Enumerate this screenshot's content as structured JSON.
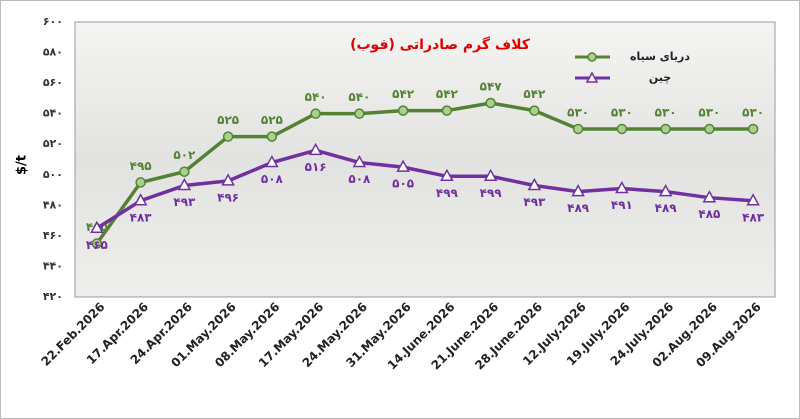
{
  "chart_data": {
    "type": "line",
    "title": "کلاف گرم صادراتی (فوب)",
    "y_label": "$/t",
    "categories": [
      "22.Feb.2026",
      "17.Apr.2026",
      "24.Apr.2026",
      "01.May.2026",
      "08.May.2026",
      "17.May.2026",
      "24.May.2026",
      "31.May.2026",
      "14.June.2026",
      "21.June.2026",
      "28.June.2026",
      "12.July.2026",
      "19.July.2026",
      "24.July.2026",
      "02.Aug.2026",
      "09.Aug.2026"
    ],
    "series": [
      {
        "name": "دریای سیاه",
        "color": "#548235",
        "marker": "circle",
        "values": [
          455,
          495,
          502,
          525,
          525,
          540,
          540,
          542,
          542,
          547,
          542,
          530,
          530,
          530,
          530,
          530
        ],
        "value_labels": [
          "۴۵۵",
          "۴۹۵",
          "۵۰۲",
          "۵۲۵",
          "۵۲۵",
          "۵۴۰",
          "۵۴۰",
          "۵۴۲",
          "۵۴۲",
          "۵۴۷",
          "۵۴۲",
          "۵۳۰",
          "۵۳۰",
          "۵۳۰",
          "۵۳۰",
          "۵۳۰"
        ]
      },
      {
        "name": "چین",
        "color": "#7030a0",
        "marker": "triangle",
        "values": [
          465,
          483,
          493,
          496,
          508,
          516,
          508,
          505,
          499,
          499,
          493,
          489,
          491,
          489,
          485,
          483
        ],
        "value_labels": [
          "۴۶۵",
          "۴۸۳",
          "۴۹۳",
          "۴۹۶",
          "۵۰۸",
          "۵۱۶",
          "۵۰۸",
          "۵۰۵",
          "۴۹۹",
          "۴۹۹",
          "۴۹۳",
          "۴۸۹",
          "۴۹۱",
          "۴۸۹",
          "۴۸۵",
          "۴۸۳"
        ]
      }
    ],
    "ylim": [
      420,
      600
    ],
    "yticks": [
      {
        "value": 420,
        "label": "۴۲۰"
      },
      {
        "value": 440,
        "label": "۴۴۰"
      },
      {
        "value": 460,
        "label": "۴۶۰"
      },
      {
        "value": 480,
        "label": "۴۸۰"
      },
      {
        "value": 500,
        "label": "۵۰۰"
      },
      {
        "value": 520,
        "label": "۵۲۰"
      },
      {
        "value": 540,
        "label": "۵۴۰"
      },
      {
        "value": 560,
        "label": "۵۶۰"
      },
      {
        "value": 580,
        "label": "۵۸۰"
      },
      {
        "value": 600,
        "label": "۶۰۰"
      }
    ],
    "grid": false
  }
}
